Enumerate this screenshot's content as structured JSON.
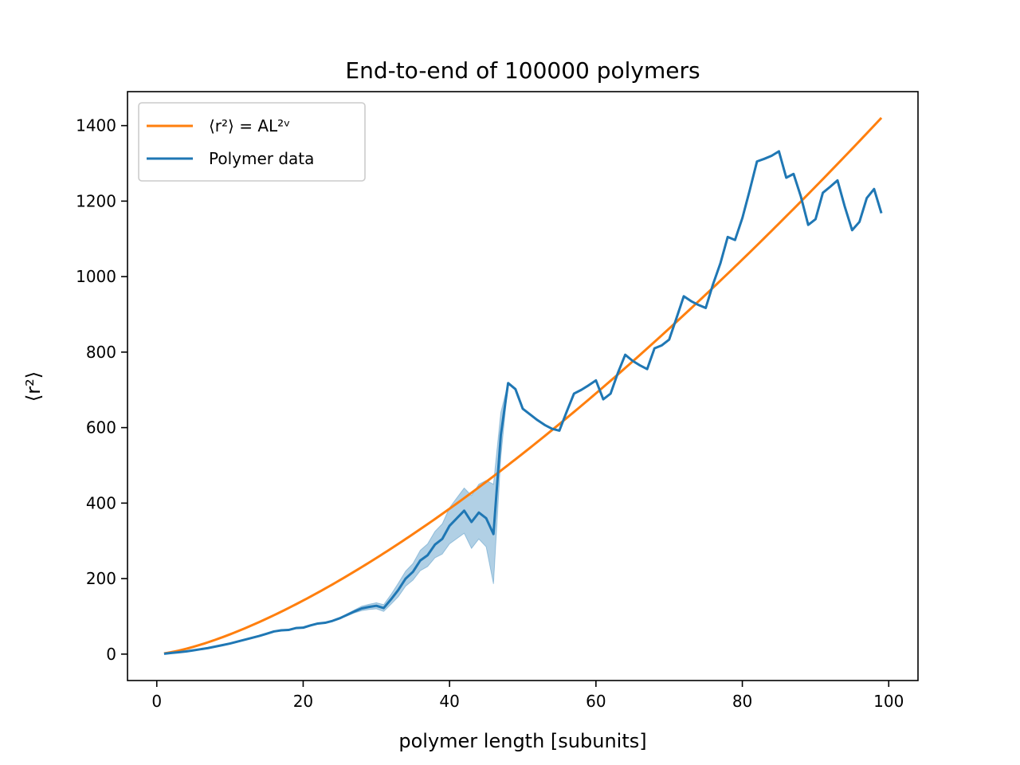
{
  "chart_data": {
    "type": "line",
    "title": "End-to-end of 100000 polymers",
    "xlabel": "polymer length [subunits]",
    "ylabel": "⟨r²⟩",
    "xlim": [
      -4,
      104
    ],
    "ylim": [
      -70,
      1490
    ],
    "xticks": [
      0,
      20,
      40,
      60,
      80,
      100
    ],
    "yticks": [
      0,
      200,
      400,
      600,
      800,
      1000,
      1200,
      1400
    ],
    "grid": false,
    "legend_position": "upper-left",
    "series": [
      {
        "name": "⟨r²⟩ = AL²ᵛ",
        "kind": "fit",
        "color": "#ff7f0e",
        "fit": {
          "A": 1.9,
          "two_nu": 1.44
        },
        "x_range": [
          1,
          99
        ]
      },
      {
        "name": "Polymer data",
        "kind": "data",
        "color": "#1f77b4",
        "x": [
          1,
          2,
          3,
          4,
          5,
          6,
          7,
          8,
          9,
          10,
          11,
          12,
          13,
          14,
          15,
          16,
          17,
          18,
          19,
          20,
          21,
          22,
          23,
          24,
          25,
          26,
          27,
          28,
          29,
          30,
          31,
          32,
          33,
          34,
          35,
          36,
          37,
          38,
          39,
          40,
          41,
          42,
          43,
          44,
          45,
          46,
          47,
          48,
          49,
          50,
          51,
          52,
          53,
          54,
          55,
          56,
          57,
          58,
          59,
          60,
          61,
          62,
          63,
          64,
          65,
          66,
          67,
          68,
          69,
          70,
          71,
          72,
          73,
          74,
          75,
          76,
          77,
          78,
          79,
          80,
          81,
          82,
          83,
          84,
          85,
          86,
          87,
          88,
          89,
          90,
          91,
          92,
          93,
          94,
          95,
          96,
          97,
          98,
          99
        ],
        "y": [
          1,
          3,
          5,
          7,
          10,
          13,
          16,
          20,
          24,
          28,
          33,
          38,
          43,
          48,
          54,
          60,
          63,
          64,
          69,
          70,
          76,
          81,
          83,
          88,
          95,
          104,
          113,
          121,
          125,
          128,
          122,
          145,
          170,
          200,
          218,
          248,
          262,
          290,
          305,
          340,
          360,
          380,
          350,
          375,
          360,
          318,
          580,
          718,
          702,
          650,
          635,
          620,
          607,
          597,
          592,
          642,
          690,
          700,
          712,
          725,
          675,
          690,
          745,
          793,
          777,
          765,
          755,
          810,
          818,
          833,
          890,
          948,
          935,
          925,
          917,
          980,
          1035,
          1105,
          1097,
          1155,
          1228,
          1305,
          1312,
          1320,
          1332,
          1262,
          1272,
          1212,
          1137,
          1152,
          1222,
          1238,
          1255,
          1185,
          1123,
          1145,
          1208,
          1232,
          1168
        ],
        "band_lower": [
          1,
          3,
          5,
          7,
          10,
          13,
          16,
          20,
          24,
          28,
          33,
          38,
          43,
          48,
          54,
          60,
          63,
          64,
          69,
          70,
          76,
          81,
          83,
          88,
          94,
          101,
          109,
          115,
          118,
          120,
          113,
          132,
          152,
          180,
          196,
          221,
          232,
          255,
          265,
          292,
          306,
          320,
          280,
          305,
          284,
          186,
          520,
          718,
          702,
          650,
          635,
          620,
          607,
          597,
          592,
          642,
          690,
          700,
          712,
          725,
          675,
          690,
          745,
          793,
          777,
          765,
          755,
          810,
          818,
          833,
          890,
          948,
          935,
          925,
          917,
          980,
          1035,
          1105,
          1097,
          1155,
          1228,
          1305,
          1312,
          1320,
          1332,
          1262,
          1272,
          1212,
          1137,
          1152,
          1222,
          1238,
          1255,
          1185,
          1123,
          1145,
          1208,
          1232,
          1168
        ],
        "band_upper": [
          1,
          3,
          5,
          7,
          10,
          13,
          16,
          20,
          24,
          28,
          33,
          38,
          43,
          48,
          54,
          60,
          63,
          64,
          69,
          70,
          76,
          81,
          83,
          88,
          96,
          107,
          117,
          127,
          132,
          136,
          131,
          158,
          188,
          220,
          240,
          275,
          292,
          325,
          345,
          388,
          414,
          440,
          420,
          450,
          460,
          450,
          640,
          718,
          702,
          650,
          635,
          620,
          607,
          597,
          592,
          642,
          690,
          700,
          712,
          725,
          675,
          690,
          745,
          793,
          777,
          765,
          755,
          810,
          818,
          833,
          890,
          948,
          935,
          925,
          917,
          980,
          1035,
          1105,
          1097,
          1155,
          1228,
          1305,
          1312,
          1320,
          1332,
          1262,
          1272,
          1212,
          1137,
          1152,
          1222,
          1238,
          1255,
          1185,
          1123,
          1145,
          1208,
          1232,
          1168
        ]
      }
    ]
  },
  "colors": {
    "fit": "#ff7f0e",
    "data": "#1f77b4",
    "band": "#1f77b4"
  }
}
